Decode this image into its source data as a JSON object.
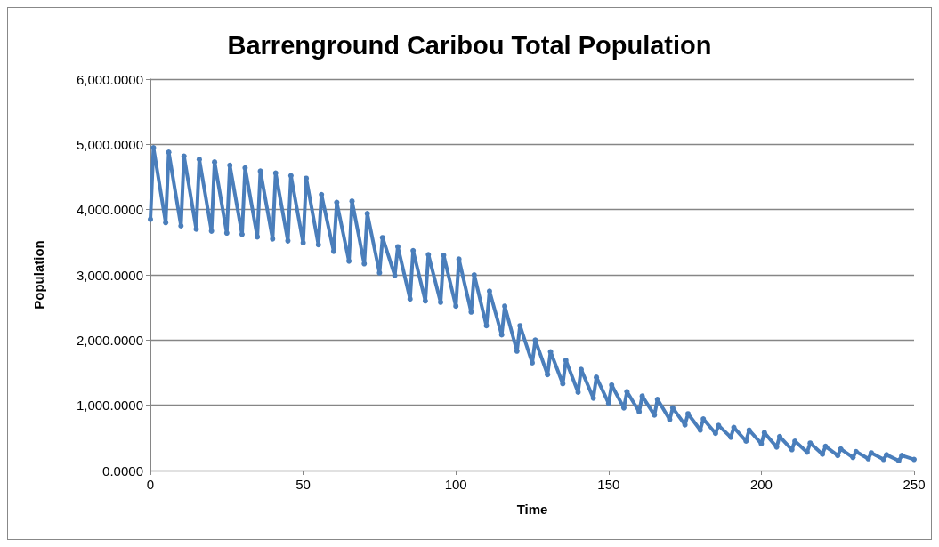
{
  "chart_data": {
    "type": "line",
    "title": "Barrenground Caribou Total Population",
    "xlabel": "Time",
    "ylabel": "Population",
    "series": [
      {
        "color": "#4a7ebb",
        "x": [
          0,
          1,
          5,
          6,
          10,
          11,
          15,
          16,
          20,
          21,
          25,
          26,
          30,
          31,
          35,
          36,
          40,
          41,
          45,
          46,
          50,
          51,
          55,
          56,
          60,
          61,
          65,
          66,
          70,
          71,
          75,
          76,
          80,
          81,
          85,
          86,
          90,
          91,
          95,
          96,
          100,
          101,
          105,
          106,
          110,
          111,
          115,
          116,
          120,
          121,
          125,
          126,
          130,
          131,
          135,
          136,
          140,
          141,
          145,
          146,
          150,
          151,
          155,
          156,
          160,
          161,
          165,
          166,
          170,
          171,
          175,
          176,
          180,
          181,
          185,
          186,
          190,
          191,
          195,
          196,
          200,
          201,
          205,
          206,
          210,
          211,
          215,
          216,
          220,
          221,
          225,
          226,
          230,
          231,
          235,
          236,
          240,
          241,
          245,
          246,
          250
        ],
        "values": [
          3850,
          4950,
          3800,
          4880,
          3750,
          4820,
          3700,
          4770,
          3670,
          4730,
          3640,
          4680,
          3620,
          4640,
          3580,
          4590,
          3550,
          4560,
          3520,
          4520,
          3490,
          4480,
          3460,
          4230,
          3360,
          4110,
          3210,
          4130,
          3170,
          3940,
          3030,
          3570,
          2990,
          3430,
          2630,
          3370,
          2600,
          3310,
          2580,
          3300,
          2520,
          3240,
          2430,
          3000,
          2220,
          2750,
          2080,
          2520,
          1830,
          2220,
          1650,
          2000,
          1470,
          1820,
          1330,
          1690,
          1200,
          1550,
          1110,
          1430,
          1030,
          1310,
          960,
          1210,
          900,
          1140,
          850,
          1090,
          780,
          960,
          700,
          870,
          620,
          790,
          570,
          690,
          510,
          660,
          450,
          620,
          410,
          580,
          360,
          520,
          320,
          450,
          280,
          420,
          250,
          370,
          230,
          330,
          200,
          290,
          180,
          270,
          170,
          240,
          150,
          230,
          170
        ]
      }
    ],
    "xlim": [
      0,
      250
    ],
    "xticks": [
      0,
      50,
      100,
      150,
      200,
      250
    ],
    "ylim": [
      0,
      6000
    ],
    "yticks": [
      {
        "value": 0,
        "label": "0.0000"
      },
      {
        "value": 1000,
        "label": "1,000.0000"
      },
      {
        "value": 2000,
        "label": "2,000.0000"
      },
      {
        "value": 3000,
        "label": "3,000.0000"
      },
      {
        "value": 4000,
        "label": "4,000.0000"
      },
      {
        "value": 5000,
        "label": "5,000.0000"
      },
      {
        "value": 6000,
        "label": "6,000.0000"
      }
    ],
    "grid": "y",
    "marker": "circle",
    "line_style": "solid"
  }
}
